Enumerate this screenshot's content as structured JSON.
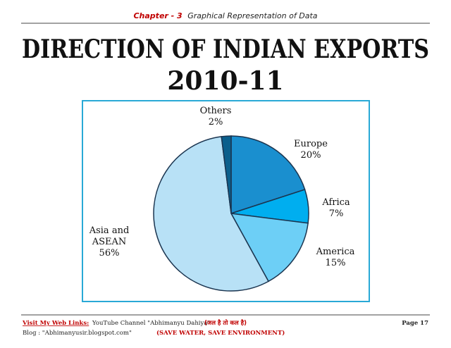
{
  "header": {
    "chapter": "Chapter - 3",
    "subject": "Graphical Representation of Data"
  },
  "chart_data": {
    "type": "pie",
    "title": "DIRECTION OF INDIAN EXPORTS",
    "subtitle": "2010-11",
    "categories": [
      "Europe",
      "Africa",
      "America",
      "Asia and ASEAN",
      "Others"
    ],
    "values": [
      20,
      7,
      15,
      56,
      2
    ],
    "value_labels": [
      "20%",
      "7%",
      "15%",
      "56%",
      "2%"
    ],
    "colors": [
      "#1a8fcf",
      "#00aeef",
      "#6dcff6",
      "#b8e1f6",
      "#0b5f8c"
    ]
  },
  "footer": {
    "links_label": "Visit My Web Links:",
    "youtube": "YouTube Channel \"Abhimanyu Dahiya\"",
    "motto_hindi": "(जल है तो कल है)",
    "page": "Page 17",
    "blog": "Blog : \"Abhimanyusir.blogspot.com\"",
    "motto": "(SAVE WATER, SAVE ENVIRONMENT)"
  }
}
